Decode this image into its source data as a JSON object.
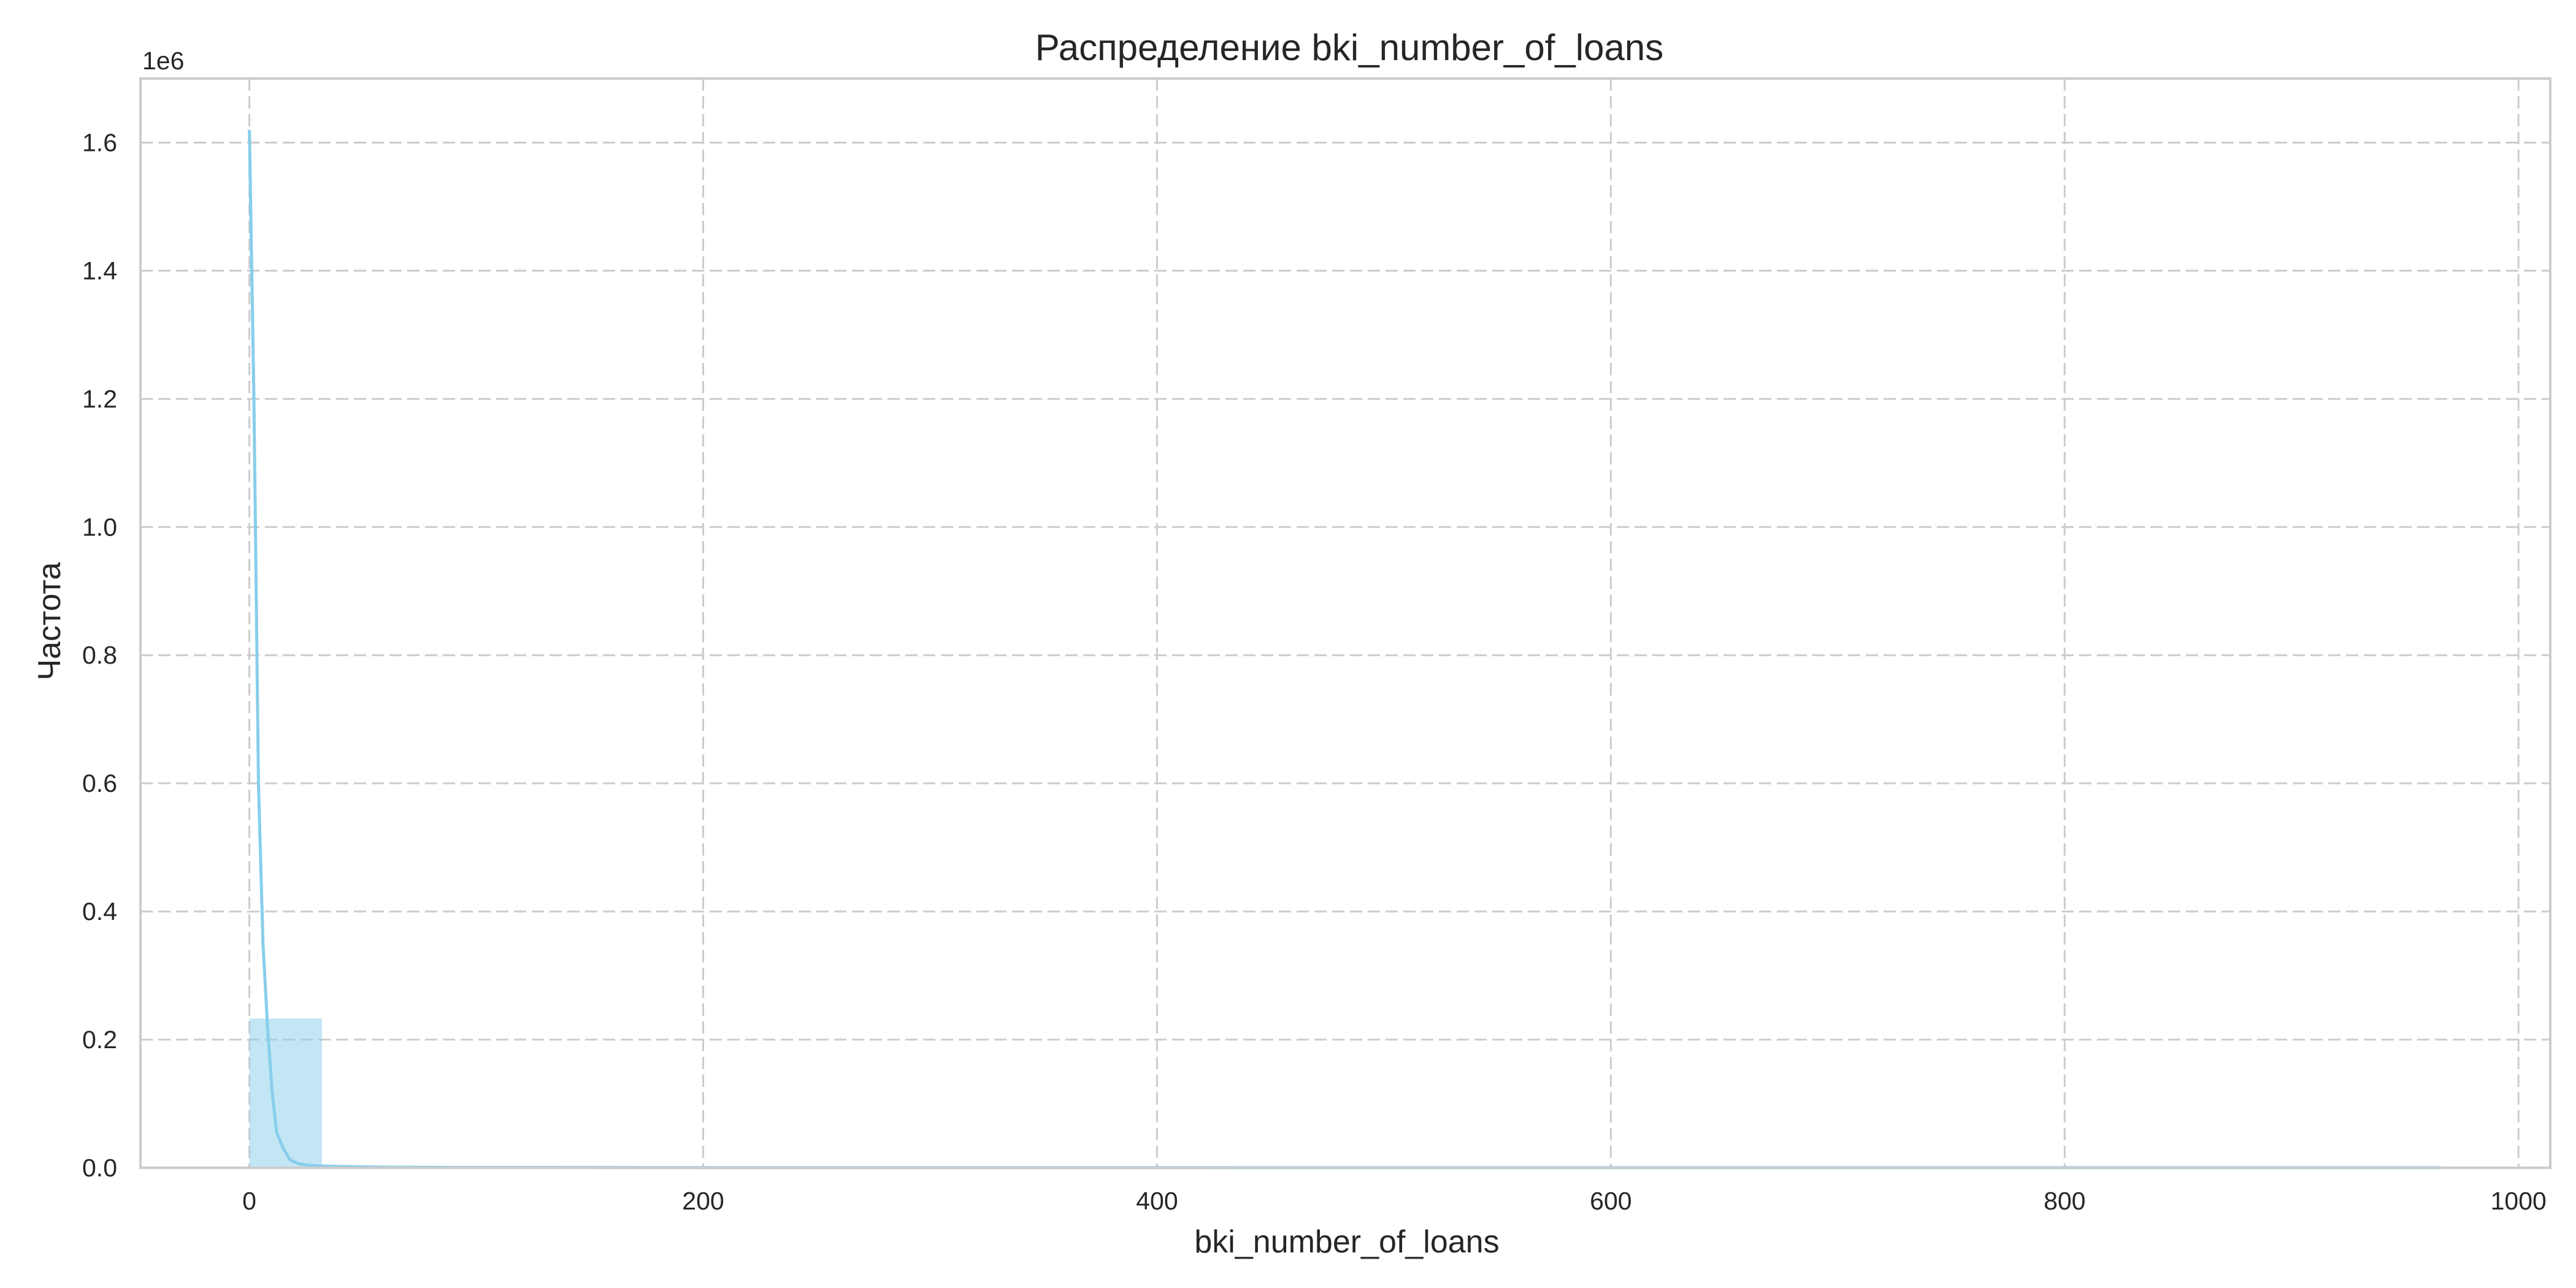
{
  "chart_data": {
    "type": "histogram",
    "title": "Распределение bki_number_of_loans",
    "xlabel": "bki_number_of_loans",
    "ylabel": "Частота",
    "y_offset_label": "1e6",
    "xlim": [
      -48,
      1014
    ],
    "ylim": [
      0,
      1.7
    ],
    "x_ticks": [
      0,
      200,
      400,
      600,
      800,
      1000
    ],
    "y_ticks": [
      0.0,
      0.2,
      0.4,
      0.6,
      0.8,
      1.0,
      1.2,
      1.4,
      1.6
    ],
    "x_tick_labels": [
      "0",
      "200",
      "400",
      "600",
      "800",
      "1000"
    ],
    "y_tick_labels": [
      "0.0",
      "0.2",
      "0.4",
      "0.6",
      "0.8",
      "1.0",
      "1.2",
      "1.4",
      "1.6"
    ],
    "grid": true,
    "bins": [
      {
        "x0": 0,
        "x1": 32,
        "value": 0.233
      },
      {
        "x0": 32,
        "x1": 64,
        "value": 0.0003
      },
      {
        "x0": 64,
        "x1": 96,
        "value": 0.0001
      },
      {
        "x0": 96,
        "x1": 128,
        "value": 5e-05
      }
    ],
    "kde": {
      "x": [
        0,
        2,
        4,
        6,
        8,
        10,
        12,
        15,
        18,
        22,
        26,
        30,
        40,
        60,
        100,
        200,
        400,
        600,
        800,
        966
      ],
      "y": [
        1.62,
        1.2,
        0.6,
        0.35,
        0.22,
        0.12,
        0.055,
        0.03,
        0.012,
        0.006,
        0.004,
        0.003,
        0.002,
        0.001,
        0.0005,
        0.0003,
        0.0002,
        0.0001,
        0.0001,
        5e-05
      ]
    },
    "color": "#87ceeb"
  }
}
